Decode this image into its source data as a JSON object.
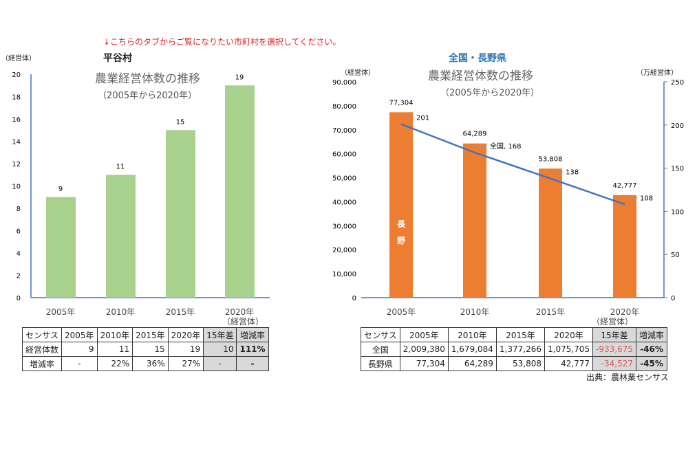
{
  "note": "↓こちらのタブからご覧になりたい市町村を選択してください。",
  "colors": {
    "left_bar": "#a9d18e",
    "right_bar": "#ed7d31",
    "line": "#4472c4",
    "note": "#e02020",
    "region_title": "#2e75b6"
  },
  "chart_data": [
    {
      "type": "bar",
      "region": "平谷村",
      "title": "農業経営体数の推移",
      "subtitle": "（2005年から2020年）",
      "ylabel": "（経営体）",
      "xunit": "（経営体）",
      "categories": [
        "2005年",
        "2010年",
        "2015年",
        "2020年"
      ],
      "values": [
        9,
        11,
        15,
        19
      ],
      "ylim": [
        0,
        20
      ],
      "yticks": [
        "0",
        "2",
        "4",
        "6",
        "8",
        "10",
        "12",
        "14",
        "16",
        "18",
        "20"
      ],
      "grid": false
    },
    {
      "type": "bar+line",
      "region": "全国・長野県",
      "title": "農業経営体数の推移",
      "subtitle": "（2005年から2020年）",
      "ylabel": "（経営体）",
      "y2label": "（万経営体）",
      "xunit": "（経営体）",
      "categories": [
        "2005年",
        "2010年",
        "2015年",
        "2020年"
      ],
      "series": [
        {
          "name": "長野",
          "type": "bar",
          "axis": "left",
          "values": [
            77304,
            64289,
            53808,
            42777
          ],
          "labels": [
            "77,304",
            "64,289",
            "53,808",
            "42,777"
          ]
        },
        {
          "name": "全国",
          "type": "line",
          "axis": "right",
          "values": [
            201,
            168,
            138,
            108
          ],
          "labels": [
            "201",
            "全国, 168",
            "138",
            "108"
          ]
        }
      ],
      "ylim": [
        0,
        90000
      ],
      "y2lim": [
        0,
        250
      ],
      "yticks": [
        "0",
        "10,000",
        "20,000",
        "30,000",
        "40,000",
        "50,000",
        "60,000",
        "70,000",
        "80,000",
        "90,000"
      ],
      "y2ticks": [
        "0",
        "50",
        "100",
        "150",
        "200",
        "250"
      ],
      "grid": false
    }
  ],
  "left_table": {
    "header": [
      "センサス",
      "2005年",
      "2010年",
      "2015年",
      "2020年",
      "15年差",
      "増減率"
    ],
    "rows": [
      [
        "経営体数",
        "9",
        "11",
        "15",
        "19",
        "10",
        "111%"
      ],
      [
        "増減率",
        "-",
        "22%",
        "36%",
        "27%",
        "-",
        "-"
      ]
    ]
  },
  "right_table": {
    "header": [
      "センサス",
      "2005年",
      "2010年",
      "2015年",
      "2020年",
      "15年差",
      "増減率"
    ],
    "rows": [
      [
        "全国",
        "2,009,380",
        "1,679,084",
        "1,377,266",
        "1,075,705",
        "-933,675",
        "-46%"
      ],
      [
        "長野県",
        "77,304",
        "64,289",
        "53,808",
        "42,777",
        "-34,527",
        "-45%"
      ]
    ]
  },
  "source": "出典：農林業センサス"
}
